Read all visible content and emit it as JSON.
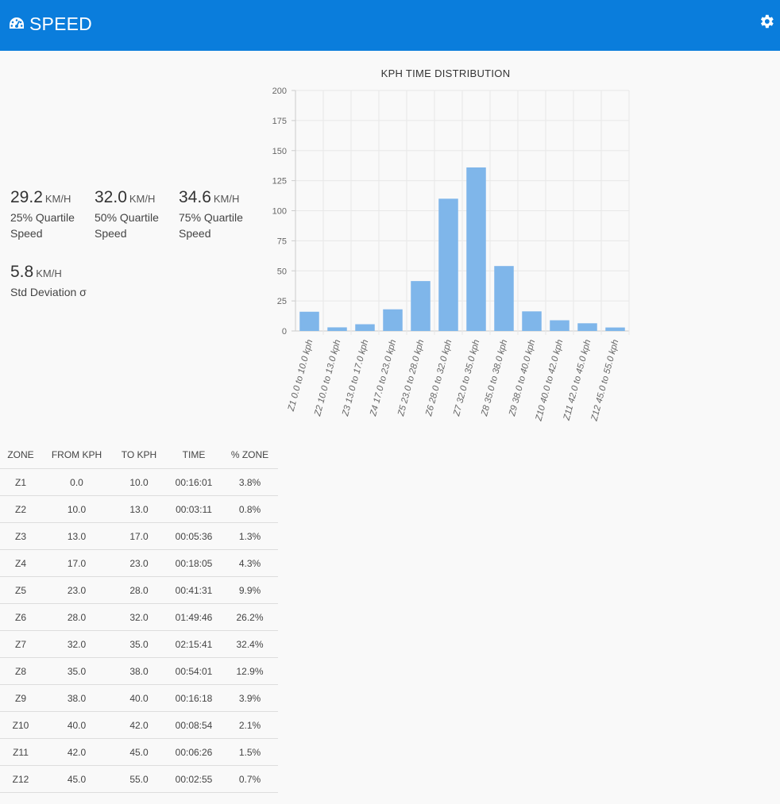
{
  "header": {
    "title": "SPEED",
    "icon": "dashboard-gauge-icon",
    "settings_icon": "gear-icon",
    "background": "#0a7ddc"
  },
  "stats": [
    {
      "value": "29.2",
      "unit": "KM/H",
      "label": "25% Quartile Speed"
    },
    {
      "value": "32.0",
      "unit": "KM/H",
      "label": "50% Quartile Speed"
    },
    {
      "value": "34.6",
      "unit": "KM/H",
      "label": "75% Quartile Speed"
    },
    {
      "value": "5.8",
      "unit": "KM/H",
      "label": "Std Deviation σ"
    }
  ],
  "chart_data": {
    "type": "bar",
    "title": "KPH TIME DISTRIBUTION",
    "categories": [
      "Z1 0.0 to 10.0 kph",
      "Z2 10.0 to 13.0 kph",
      "Z3 13.0 to 17.0 kph",
      "Z4 17.0 to 23.0 kph",
      "Z5 23.0 to 28.0 kph",
      "Z6 28.0 to 32.0 kph",
      "Z7 32.0 to 35.0 kph",
      "Z8 35.0 to 38.0 kph",
      "Z9 38.0 to 40.0 kph",
      "Z10 40.0 to 42.0 kph",
      "Z11 42.0 to 45.0 kph",
      "Z12 45.0 to 55.0 kph"
    ],
    "values": [
      16,
      3,
      5.6,
      18,
      41.5,
      110,
      136,
      54,
      16.3,
      8.9,
      6.4,
      2.9
    ],
    "ylim": [
      0,
      200
    ],
    "yticks": [
      0,
      25,
      50,
      75,
      100,
      125,
      150,
      175,
      200
    ],
    "grid": true,
    "bar_color": "#7fb6ea"
  },
  "table": {
    "headers": [
      "ZONE",
      "FROM KPH",
      "TO KPH",
      "TIME",
      "% ZONE"
    ],
    "rows": [
      [
        "Z1",
        "0.0",
        "10.0",
        "00:16:01",
        "3.8%"
      ],
      [
        "Z2",
        "10.0",
        "13.0",
        "00:03:11",
        "0.8%"
      ],
      [
        "Z3",
        "13.0",
        "17.0",
        "00:05:36",
        "1.3%"
      ],
      [
        "Z4",
        "17.0",
        "23.0",
        "00:18:05",
        "4.3%"
      ],
      [
        "Z5",
        "23.0",
        "28.0",
        "00:41:31",
        "9.9%"
      ],
      [
        "Z6",
        "28.0",
        "32.0",
        "01:49:46",
        "26.2%"
      ],
      [
        "Z7",
        "32.0",
        "35.0",
        "02:15:41",
        "32.4%"
      ],
      [
        "Z8",
        "35.0",
        "38.0",
        "00:54:01",
        "12.9%"
      ],
      [
        "Z9",
        "38.0",
        "40.0",
        "00:16:18",
        "3.9%"
      ],
      [
        "Z10",
        "40.0",
        "42.0",
        "00:08:54",
        "2.1%"
      ],
      [
        "Z11",
        "42.0",
        "45.0",
        "00:06:26",
        "1.5%"
      ],
      [
        "Z12",
        "45.0",
        "55.0",
        "00:02:55",
        "0.7%"
      ]
    ]
  }
}
